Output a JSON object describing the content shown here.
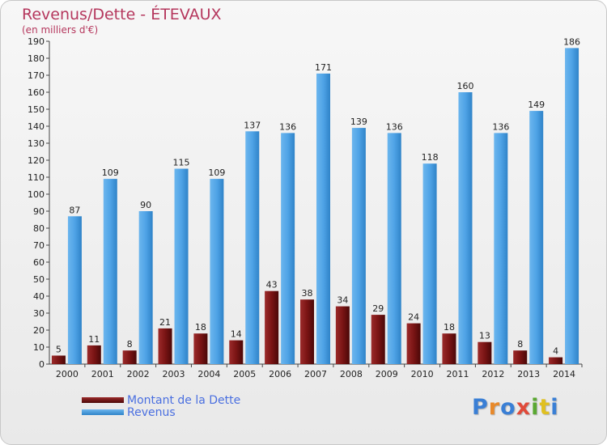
{
  "title": "Revenus/Dette - ÉTEVAUX",
  "subtitle": "(en milliers d'€)",
  "logo": {
    "text": "Proxiti",
    "colors": [
      "#3a7fd5",
      "#e8892a",
      "#3a7fd5",
      "#e04a3a",
      "#5aa832",
      "#e0c020",
      "#3a7fd5"
    ]
  },
  "colors": {
    "dette": "#7a1414",
    "revenus": "#4fa3e6",
    "title": "#b5375d",
    "legend_text": "#4a6fe0"
  },
  "chart_data": {
    "type": "bar",
    "categories": [
      "2000",
      "2001",
      "2002",
      "2003",
      "2004",
      "2005",
      "2006",
      "2007",
      "2008",
      "2009",
      "2010",
      "2011",
      "2012",
      "2013",
      "2014"
    ],
    "series": [
      {
        "name": "Montant de la Dette",
        "values": [
          5,
          11,
          8,
          21,
          18,
          14,
          43,
          38,
          34,
          29,
          24,
          18,
          13,
          8,
          4
        ]
      },
      {
        "name": "Revenus",
        "values": [
          87,
          109,
          90,
          115,
          109,
          137,
          136,
          171,
          139,
          136,
          118,
          160,
          136,
          149,
          186
        ]
      }
    ],
    "title": "Revenus/Dette - ÉTEVAUX",
    "ylabel": "(en milliers d'€)",
    "ylim": [
      0,
      190
    ],
    "yticks": [
      0,
      10,
      20,
      30,
      40,
      50,
      60,
      70,
      80,
      90,
      100,
      110,
      120,
      130,
      140,
      150,
      160,
      170,
      180,
      190
    ],
    "grid": false,
    "legend": "bottom-left"
  }
}
